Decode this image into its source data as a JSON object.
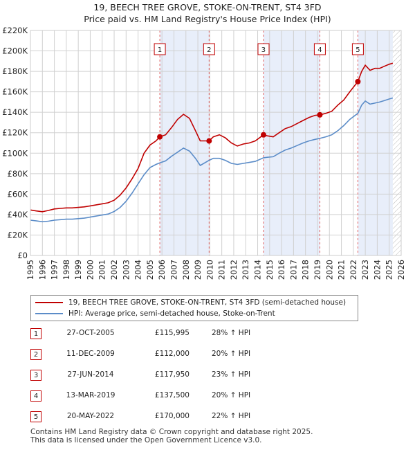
{
  "title_line1": "19, BEECH TREE GROVE, STOKE-ON-TRENT, ST4 3FD",
  "title_line2": "Price paid vs. HM Land Registry's House Price Index (HPI)",
  "chart_data": {
    "type": "line",
    "x_ticks": [
      1995,
      1996,
      1997,
      1998,
      1999,
      2000,
      2001,
      2002,
      2003,
      2004,
      2005,
      2006,
      2007,
      2008,
      2009,
      2010,
      2011,
      2012,
      2013,
      2014,
      2015,
      2016,
      2017,
      2018,
      2019,
      2020,
      2021,
      2022,
      2023,
      2024,
      2025,
      2026
    ],
    "y_ticks": [
      "£0",
      "£20K",
      "£40K",
      "£60K",
      "£80K",
      "£100K",
      "£120K",
      "£140K",
      "£160K",
      "£180K",
      "£200K",
      "£220K"
    ],
    "xlim": [
      1995,
      2026
    ],
    "ylim": [
      0,
      220000
    ],
    "grid": true,
    "colors": {
      "property": "#c00000",
      "hpi": "#5b8cc8",
      "band": "#e8eefa",
      "grid": "#d0d0d0"
    },
    "series": [
      {
        "name": "19, BEECH TREE GROVE, STOKE-ON-TRENT, ST4 3FD (semi-detached house)",
        "color": "#c00000",
        "points": [
          [
            1995.0,
            44500
          ],
          [
            1995.5,
            43500
          ],
          [
            1996.0,
            42800
          ],
          [
            1996.5,
            44000
          ],
          [
            1997.0,
            45500
          ],
          [
            1997.5,
            46000
          ],
          [
            1998.0,
            46500
          ],
          [
            1998.5,
            46500
          ],
          [
            1999.0,
            47000
          ],
          [
            1999.5,
            47500
          ],
          [
            2000.0,
            48500
          ],
          [
            2000.5,
            49500
          ],
          [
            2001.0,
            50500
          ],
          [
            2001.5,
            51500
          ],
          [
            2002.0,
            54000
          ],
          [
            2002.5,
            59000
          ],
          [
            2003.0,
            66000
          ],
          [
            2003.5,
            75000
          ],
          [
            2004.0,
            85000
          ],
          [
            2004.5,
            100000
          ],
          [
            2005.0,
            108000
          ],
          [
            2005.5,
            112000
          ],
          [
            2005.82,
            115995
          ],
          [
            2006.3,
            118000
          ],
          [
            2006.8,
            125000
          ],
          [
            2007.3,
            133000
          ],
          [
            2007.8,
            138000
          ],
          [
            2008.3,
            134000
          ],
          [
            2008.8,
            122000
          ],
          [
            2009.2,
            112000
          ],
          [
            2009.94,
            112000
          ],
          [
            2010.3,
            116000
          ],
          [
            2010.8,
            118000
          ],
          [
            2011.3,
            115000
          ],
          [
            2011.8,
            110000
          ],
          [
            2012.3,
            107000
          ],
          [
            2012.8,
            109000
          ],
          [
            2013.3,
            110000
          ],
          [
            2013.8,
            112000
          ],
          [
            2014.49,
            117950
          ],
          [
            2014.8,
            117000
          ],
          [
            2015.3,
            116000
          ],
          [
            2015.8,
            120000
          ],
          [
            2016.3,
            124000
          ],
          [
            2016.8,
            126000
          ],
          [
            2017.3,
            129000
          ],
          [
            2017.8,
            132000
          ],
          [
            2018.3,
            135000
          ],
          [
            2018.8,
            137000
          ],
          [
            2019.2,
            137500
          ],
          [
            2019.7,
            139000
          ],
          [
            2020.2,
            141000
          ],
          [
            2020.7,
            147000
          ],
          [
            2021.2,
            152000
          ],
          [
            2021.7,
            160000
          ],
          [
            2022.38,
            170000
          ],
          [
            2022.7,
            180000
          ],
          [
            2023.0,
            186000
          ],
          [
            2023.4,
            181000
          ],
          [
            2023.8,
            183000
          ],
          [
            2024.2,
            183000
          ],
          [
            2024.6,
            185000
          ],
          [
            2025.0,
            187000
          ],
          [
            2025.3,
            188000
          ]
        ]
      },
      {
        "name": "HPI: Average price, semi-detached house, Stoke-on-Trent",
        "color": "#5b8cc8",
        "points": [
          [
            1995.0,
            34500
          ],
          [
            1995.5,
            33800
          ],
          [
            1996.0,
            33000
          ],
          [
            1996.5,
            33500
          ],
          [
            1997.0,
            34500
          ],
          [
            1997.5,
            35000
          ],
          [
            1998.0,
            35500
          ],
          [
            1998.5,
            35500
          ],
          [
            1999.0,
            36000
          ],
          [
            1999.5,
            36500
          ],
          [
            2000.0,
            37500
          ],
          [
            2000.5,
            38500
          ],
          [
            2001.0,
            39500
          ],
          [
            2001.5,
            40500
          ],
          [
            2002.0,
            43000
          ],
          [
            2002.5,
            47000
          ],
          [
            2003.0,
            53000
          ],
          [
            2003.5,
            61000
          ],
          [
            2004.0,
            70000
          ],
          [
            2004.5,
            79000
          ],
          [
            2005.0,
            86000
          ],
          [
            2005.5,
            89000
          ],
          [
            2005.82,
            90500
          ],
          [
            2006.3,
            92500
          ],
          [
            2006.8,
            97000
          ],
          [
            2007.3,
            101000
          ],
          [
            2007.8,
            105000
          ],
          [
            2008.3,
            102000
          ],
          [
            2008.8,
            95000
          ],
          [
            2009.2,
            88000
          ],
          [
            2009.94,
            93000
          ],
          [
            2010.3,
            95000
          ],
          [
            2010.8,
            95000
          ],
          [
            2011.3,
            93000
          ],
          [
            2011.8,
            90000
          ],
          [
            2012.3,
            89000
          ],
          [
            2012.8,
            90000
          ],
          [
            2013.3,
            91000
          ],
          [
            2013.8,
            92000
          ],
          [
            2014.49,
            95500
          ],
          [
            2014.8,
            96000
          ],
          [
            2015.3,
            96500
          ],
          [
            2015.8,
            100000
          ],
          [
            2016.3,
            103000
          ],
          [
            2016.8,
            105000
          ],
          [
            2017.3,
            107500
          ],
          [
            2017.8,
            110000
          ],
          [
            2018.3,
            112000
          ],
          [
            2018.8,
            113500
          ],
          [
            2019.2,
            114500
          ],
          [
            2019.7,
            116000
          ],
          [
            2020.2,
            118000
          ],
          [
            2020.7,
            122000
          ],
          [
            2021.2,
            127000
          ],
          [
            2021.7,
            133000
          ],
          [
            2022.38,
            139000
          ],
          [
            2022.7,
            147000
          ],
          [
            2023.0,
            151000
          ],
          [
            2023.4,
            148000
          ],
          [
            2023.8,
            149000
          ],
          [
            2024.2,
            150000
          ],
          [
            2024.6,
            151500
          ],
          [
            2025.0,
            153000
          ],
          [
            2025.3,
            154000
          ]
        ]
      }
    ],
    "markers": [
      {
        "label": "1",
        "x": 2005.82,
        "y": 115995
      },
      {
        "label": "2",
        "x": 2009.94,
        "y": 112000
      },
      {
        "label": "3",
        "x": 2014.49,
        "y": 117950
      },
      {
        "label": "4",
        "x": 2019.2,
        "y": 137500
      },
      {
        "label": "5",
        "x": 2022.38,
        "y": 170000
      }
    ],
    "shaded_bands": [
      [
        2005.82,
        2009.94
      ],
      [
        2014.49,
        2019.2
      ],
      [
        2022.38,
        2025.3
      ]
    ],
    "future_hatch_from": 2025.3
  },
  "legend": {
    "property_label": "19, BEECH TREE GROVE, STOKE-ON-TRENT, ST4 3FD (semi-detached house)",
    "hpi_label": "HPI: Average price, semi-detached house, Stoke-on-Trent"
  },
  "sales": [
    {
      "num": "1",
      "date": "27-OCT-2005",
      "price": "£115,995",
      "hpi": "28% ↑ HPI"
    },
    {
      "num": "2",
      "date": "11-DEC-2009",
      "price": "£112,000",
      "hpi": "20% ↑ HPI"
    },
    {
      "num": "3",
      "date": "27-JUN-2014",
      "price": "£117,950",
      "hpi": "23% ↑ HPI"
    },
    {
      "num": "4",
      "date": "13-MAR-2019",
      "price": "£137,500",
      "hpi": "20% ↑ HPI"
    },
    {
      "num": "5",
      "date": "20-MAY-2022",
      "price": "£170,000",
      "hpi": "22% ↑ HPI"
    }
  ],
  "footer": {
    "line1": "Contains HM Land Registry data © Crown copyright and database right 2025.",
    "line2": "This data is licensed under the Open Government Licence v3.0."
  }
}
